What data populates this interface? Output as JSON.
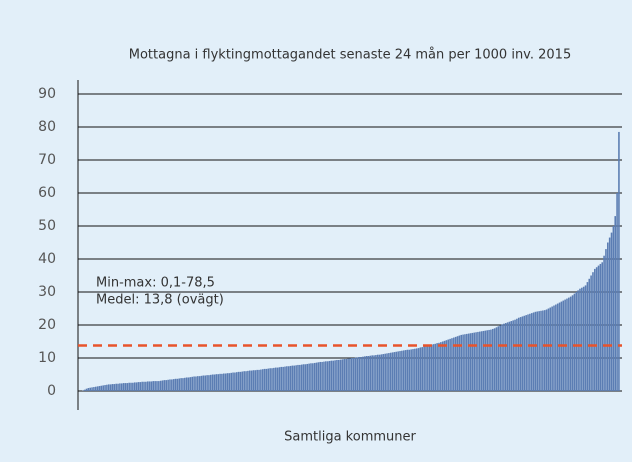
{
  "chart_data": {
    "type": "bar",
    "title": "Mottagna i flyktingmottagandet senaste 24 mån per 1000 inv. 2015",
    "x_label": "Samtliga kommuner",
    "annotations": [
      "Min-max: 0,1-78,5",
      "Medel: 13,8 (ovägt)"
    ],
    "reference_line": {
      "value": 13.8,
      "color": "#e8532b",
      "dashed": true
    },
    "color": "#5b7db3",
    "ylim": [
      0,
      90
    ],
    "yticks": [
      0,
      10,
      20,
      30,
      40,
      50,
      60,
      70,
      80,
      90
    ],
    "grid": true,
    "values": [
      0.1,
      0.4,
      0.7,
      0.9,
      1.0,
      1.1,
      1.2,
      1.3,
      1.4,
      1.5,
      1.6,
      1.7,
      1.8,
      1.9,
      2.0,
      2.0,
      2.1,
      2.1,
      2.2,
      2.2,
      2.3,
      2.3,
      2.4,
      2.4,
      2.4,
      2.5,
      2.5,
      2.5,
      2.6,
      2.6,
      2.7,
      2.7,
      2.8,
      2.8,
      2.8,
      2.9,
      2.9,
      2.9,
      3.0,
      3.0,
      3.0,
      3.0,
      3.1,
      3.2,
      3.3,
      3.3,
      3.4,
      3.5,
      3.5,
      3.6,
      3.7,
      3.7,
      3.8,
      3.9,
      3.9,
      4.0,
      4.1,
      4.1,
      4.2,
      4.3,
      4.4,
      4.4,
      4.5,
      4.5,
      4.6,
      4.7,
      4.7,
      4.8,
      4.8,
      4.9,
      5.0,
      5.0,
      5.1,
      5.1,
      5.2,
      5.2,
      5.3,
      5.3,
      5.4,
      5.4,
      5.5,
      5.6,
      5.6,
      5.7,
      5.8,
      5.8,
      5.9,
      6.0,
      6.0,
      6.1,
      6.2,
      6.2,
      6.3,
      6.3,
      6.4,
      6.4,
      6.5,
      6.6,
      6.7,
      6.7,
      6.8,
      6.9,
      6.9,
      7.0,
      7.1,
      7.1,
      7.2,
      7.3,
      7.3,
      7.4,
      7.5,
      7.5,
      7.6,
      7.7,
      7.7,
      7.8,
      7.9,
      7.9,
      8.0,
      8.1,
      8.1,
      8.2,
      8.3,
      8.4,
      8.4,
      8.5,
      8.6,
      8.7,
      8.8,
      8.8,
      8.9,
      9.0,
      9.0,
      9.1,
      9.2,
      9.2,
      9.3,
      9.4,
      9.4,
      9.5,
      9.6,
      9.7,
      9.7,
      9.8,
      9.9,
      10.0,
      10.0,
      10.1,
      10.2,
      10.3,
      10.3,
      10.4,
      10.5,
      10.6,
      10.6,
      10.7,
      10.8,
      10.8,
      10.9,
      11.0,
      11.0,
      11.1,
      11.2,
      11.3,
      11.4,
      11.5,
      11.6,
      11.7,
      11.8,
      11.9,
      12.0,
      12.1,
      12.2,
      12.3,
      12.4,
      12.5,
      12.5,
      12.6,
      12.7,
      12.8,
      12.9,
      13.0,
      13.2,
      13.3,
      13.5,
      13.6,
      13.8,
      13.9,
      14.0,
      14.2,
      14.3,
      14.5,
      14.6,
      14.8,
      15.0,
      15.2,
      15.4,
      15.6,
      15.8,
      16.0,
      16.2,
      16.4,
      16.6,
      16.8,
      17.0,
      17.1,
      17.2,
      17.3,
      17.4,
      17.5,
      17.6,
      17.7,
      17.8,
      17.9,
      18.0,
      18.1,
      18.2,
      18.3,
      18.4,
      18.5,
      18.6,
      18.8,
      19.0,
      19.3,
      19.6,
      19.9,
      20.2,
      20.4,
      20.6,
      20.8,
      21.0,
      21.2,
      21.4,
      21.6,
      21.9,
      22.2,
      22.4,
      22.6,
      22.8,
      23.0,
      23.2,
      23.4,
      23.6,
      23.8,
      24.0,
      24.1,
      24.2,
      24.3,
      24.4,
      24.5,
      24.7,
      25.0,
      25.3,
      25.6,
      25.9,
      26.2,
      26.5,
      26.8,
      27.1,
      27.4,
      27.7,
      28.0,
      28.3,
      28.6,
      29.0,
      29.5,
      30.0,
      30.5,
      31.0,
      31.3,
      31.6,
      32.0,
      33.0,
      34.0,
      35.0,
      36.0,
      37.0,
      37.5,
      38.0,
      38.5,
      39.0,
      41.0,
      43.0,
      45.0,
      46.5,
      48.0,
      50.0,
      53.0,
      60.0,
      78.5
    ]
  }
}
